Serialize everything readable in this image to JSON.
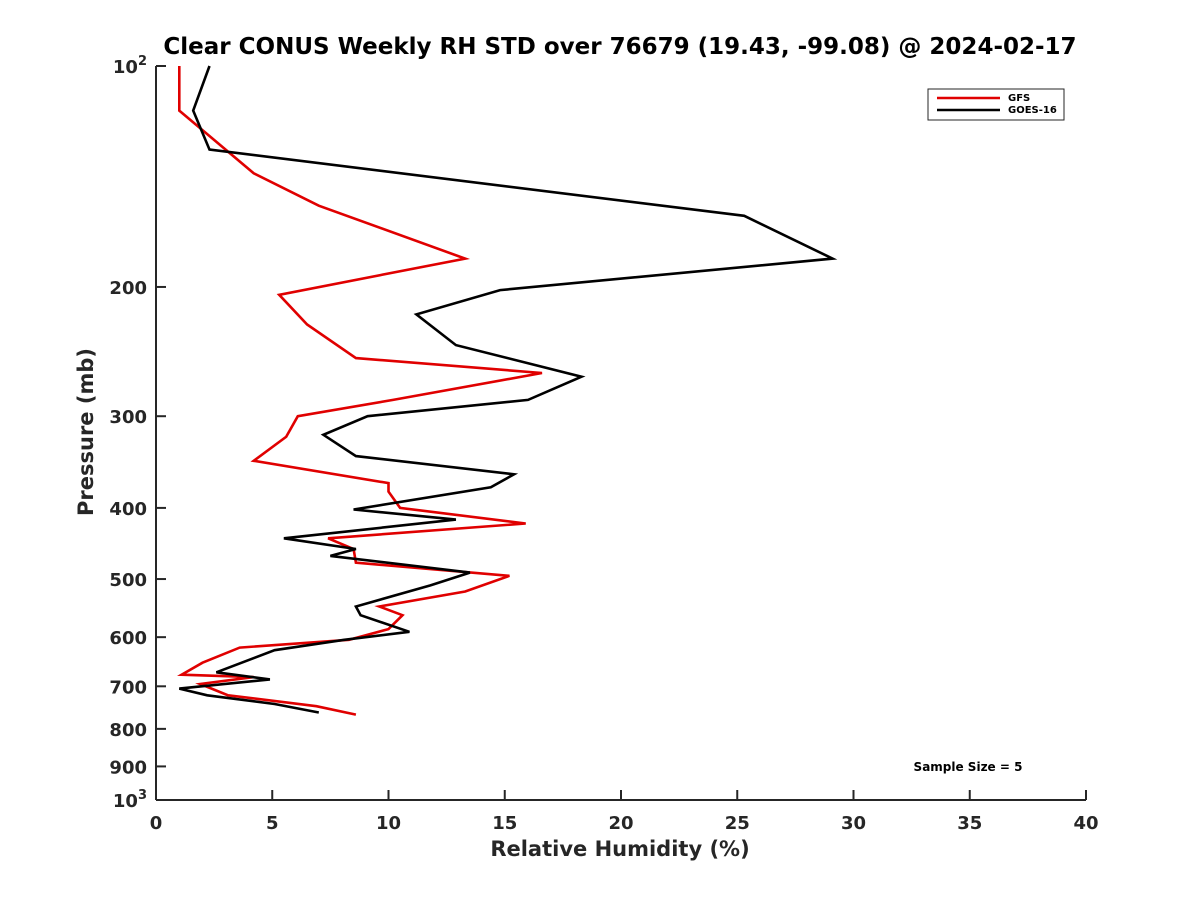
{
  "chart_data": {
    "type": "line",
    "title": "Clear CONUS Weekly RH STD over 76679 (19.43, -99.08) @ 2024-02-17",
    "xlabel": "Relative Humidity (%)",
    "ylabel": "Pressure (mb)",
    "xlim": [
      0,
      40
    ],
    "ylim": [
      100,
      1000
    ],
    "y_scale": "log",
    "y_reversed": true,
    "grid": false,
    "legend_position": "top-right",
    "x_ticks": [
      "0",
      "5",
      "10",
      "15",
      "20",
      "25",
      "30",
      "35",
      "40"
    ],
    "y_ticks": [
      {
        "value": 100,
        "base": "10",
        "exp": "2"
      },
      {
        "value": 200,
        "label": "200"
      },
      {
        "value": 300,
        "label": "300"
      },
      {
        "value": 400,
        "label": "400"
      },
      {
        "value": 500,
        "label": "500"
      },
      {
        "value": 600,
        "label": "600"
      },
      {
        "value": 700,
        "label": "700"
      },
      {
        "value": 800,
        "label": "800"
      },
      {
        "value": 900,
        "label": "900"
      },
      {
        "value": 1000,
        "base": "10",
        "exp": "3"
      }
    ],
    "series": [
      {
        "name": "GFS",
        "color": "#e00000",
        "points": [
          [
            1.0,
            100
          ],
          [
            1.0,
            115
          ],
          [
            4.2,
            140
          ],
          [
            7.0,
            155
          ],
          [
            13.3,
            183
          ],
          [
            5.3,
            205
          ],
          [
            6.5,
            225
          ],
          [
            8.6,
            250
          ],
          [
            16.6,
            262
          ],
          [
            10.2,
            285
          ],
          [
            6.1,
            300
          ],
          [
            5.6,
            320
          ],
          [
            4.2,
            345
          ],
          [
            10.0,
            370
          ],
          [
            10.0,
            380
          ],
          [
            10.5,
            400
          ],
          [
            15.9,
            420
          ],
          [
            7.4,
            440
          ],
          [
            8.5,
            455
          ],
          [
            8.6,
            475
          ],
          [
            15.2,
            495
          ],
          [
            13.3,
            520
          ],
          [
            9.6,
            545
          ],
          [
            10.6,
            560
          ],
          [
            10.0,
            585
          ],
          [
            8.3,
            605
          ],
          [
            3.6,
            620
          ],
          [
            2.0,
            650
          ],
          [
            1.1,
            675
          ],
          [
            4.2,
            680
          ],
          [
            1.9,
            695
          ],
          [
            3.1,
            720
          ],
          [
            6.9,
            745
          ],
          [
            8.6,
            765
          ]
        ]
      },
      {
        "name": "GOES-16",
        "color": "#000000",
        "points": [
          [
            2.3,
            100
          ],
          [
            1.6,
            115
          ],
          [
            2.3,
            130
          ],
          [
            25.3,
            160
          ],
          [
            29.1,
            183
          ],
          [
            14.8,
            202
          ],
          [
            11.2,
            218
          ],
          [
            12.9,
            240
          ],
          [
            18.3,
            265
          ],
          [
            16.0,
            285
          ],
          [
            9.1,
            300
          ],
          [
            7.2,
            318
          ],
          [
            8.6,
            340
          ],
          [
            15.4,
            360
          ],
          [
            14.4,
            375
          ],
          [
            8.5,
            402
          ],
          [
            12.9,
            415
          ],
          [
            5.5,
            440
          ],
          [
            8.6,
            455
          ],
          [
            7.5,
            465
          ],
          [
            13.5,
            490
          ],
          [
            11.8,
            510
          ],
          [
            8.6,
            545
          ],
          [
            8.8,
            560
          ],
          [
            10.9,
            590
          ],
          [
            8.1,
            605
          ],
          [
            5.1,
            625
          ],
          [
            2.6,
            670
          ],
          [
            4.9,
            685
          ],
          [
            1.0,
            705
          ],
          [
            2.2,
            720
          ],
          [
            5.1,
            740
          ],
          [
            7.0,
            760
          ]
        ]
      }
    ],
    "annotation": "Sample Size = 5"
  }
}
